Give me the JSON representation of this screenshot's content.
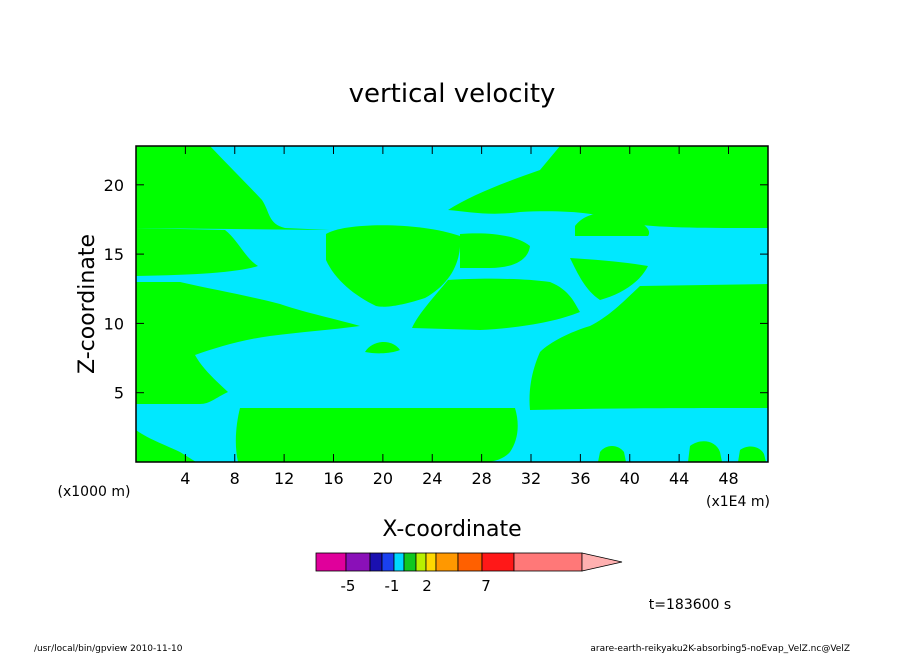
{
  "chart_data": {
    "type": "heatmap",
    "title": "vertical velocity",
    "xlabel": "X-coordinate",
    "ylabel": "Z-coordinate",
    "x_unit": "(x1E4 m)",
    "y_unit": "(x1000 m)",
    "x_ticks": [
      "4",
      "8",
      "12",
      "16",
      "20",
      "24",
      "28",
      "32",
      "36",
      "40",
      "44",
      "48"
    ],
    "y_ticks": [
      "5",
      "10",
      "15",
      "20"
    ],
    "xlim": [
      0,
      51.2
    ],
    "ylim": [
      0,
      22.8
    ],
    "colorbar": {
      "colors": [
        "#e0009b",
        "#8a10b8",
        "#1a10b0",
        "#1a40f0",
        "#00d8ff",
        "#10c820",
        "#b8f000",
        "#ffd800",
        "#ff9800",
        "#ff6000",
        "#ff1818",
        "#ff7878",
        "#ffb0b0"
      ],
      "labels": [
        "-5",
        "-1",
        "2",
        "7"
      ],
      "extend": "max"
    },
    "regions": [
      {
        "sign": "positive",
        "color": "#00ff00",
        "label": "upper-left"
      },
      {
        "sign": "positive",
        "color": "#00ff00",
        "label": "upper-right"
      },
      {
        "sign": "positive",
        "color": "#00ff00",
        "label": "middle-left"
      },
      {
        "sign": "positive",
        "color": "#00ff00",
        "label": "heart-cell"
      },
      {
        "sign": "positive",
        "color": "#00ff00",
        "label": "right-band"
      },
      {
        "sign": "positive",
        "color": "#00ff00",
        "label": "lower-left"
      },
      {
        "sign": "positive",
        "color": "#00ff00",
        "label": "bottom-cell"
      },
      {
        "sign": "negative",
        "color": "#00e8ff",
        "label": "background"
      }
    ]
  },
  "time_label": "t=183600 s",
  "footer": {
    "left": "/usr/local/bin/gpview  2010-11-10",
    "right": "arare-earth-reikyaku2K-absorbing5-noEvap_VelZ.nc@VelZ"
  }
}
